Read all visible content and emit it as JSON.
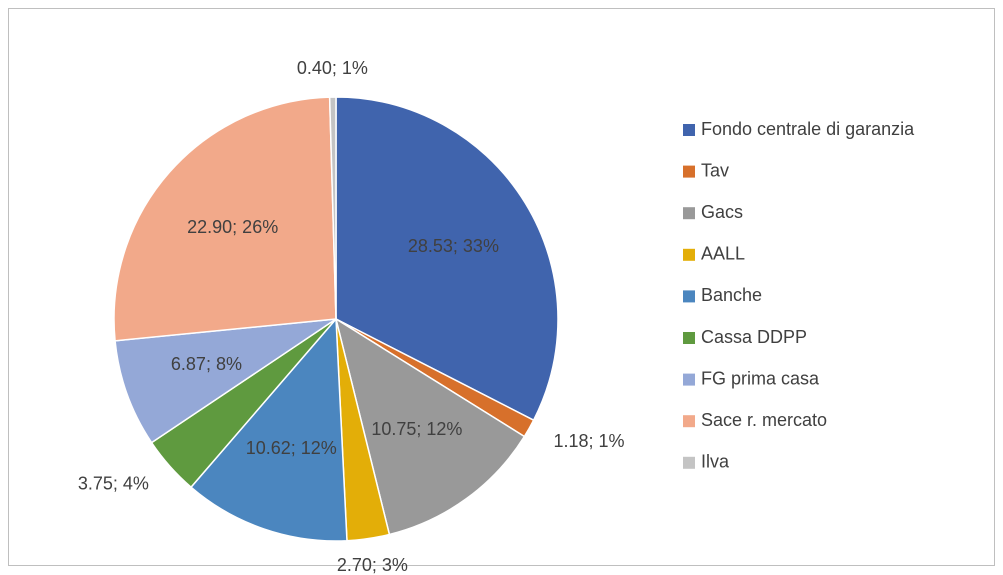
{
  "chart_data": {
    "type": "pie",
    "categories": [
      "Fondo centrale di garanzia",
      "Tav",
      "Gacs",
      "AALL",
      "Banche",
      "Cassa DDPP",
      "FG prima casa",
      "Sace r. mercato",
      "Ilva"
    ],
    "values": [
      28.53,
      1.18,
      10.75,
      2.7,
      10.62,
      3.75,
      6.87,
      22.9,
      0.4
    ],
    "value_labels": [
      "28.53; 33%",
      "1.18; 1%",
      "10.75; 12%",
      "2.70; 3%",
      "10.62; 12%",
      "3.75; 4%",
      "6.87; 8%",
      "22.90; 26%",
      "0.40; 1%"
    ],
    "colors": [
      "#4064ad",
      "#d7702b",
      "#999999",
      "#e3ae08",
      "#4b86bf",
      "#5f9a3f",
      "#94a8d7",
      "#f2a98a",
      "#c4c4c4"
    ],
    "legend": "right"
  }
}
